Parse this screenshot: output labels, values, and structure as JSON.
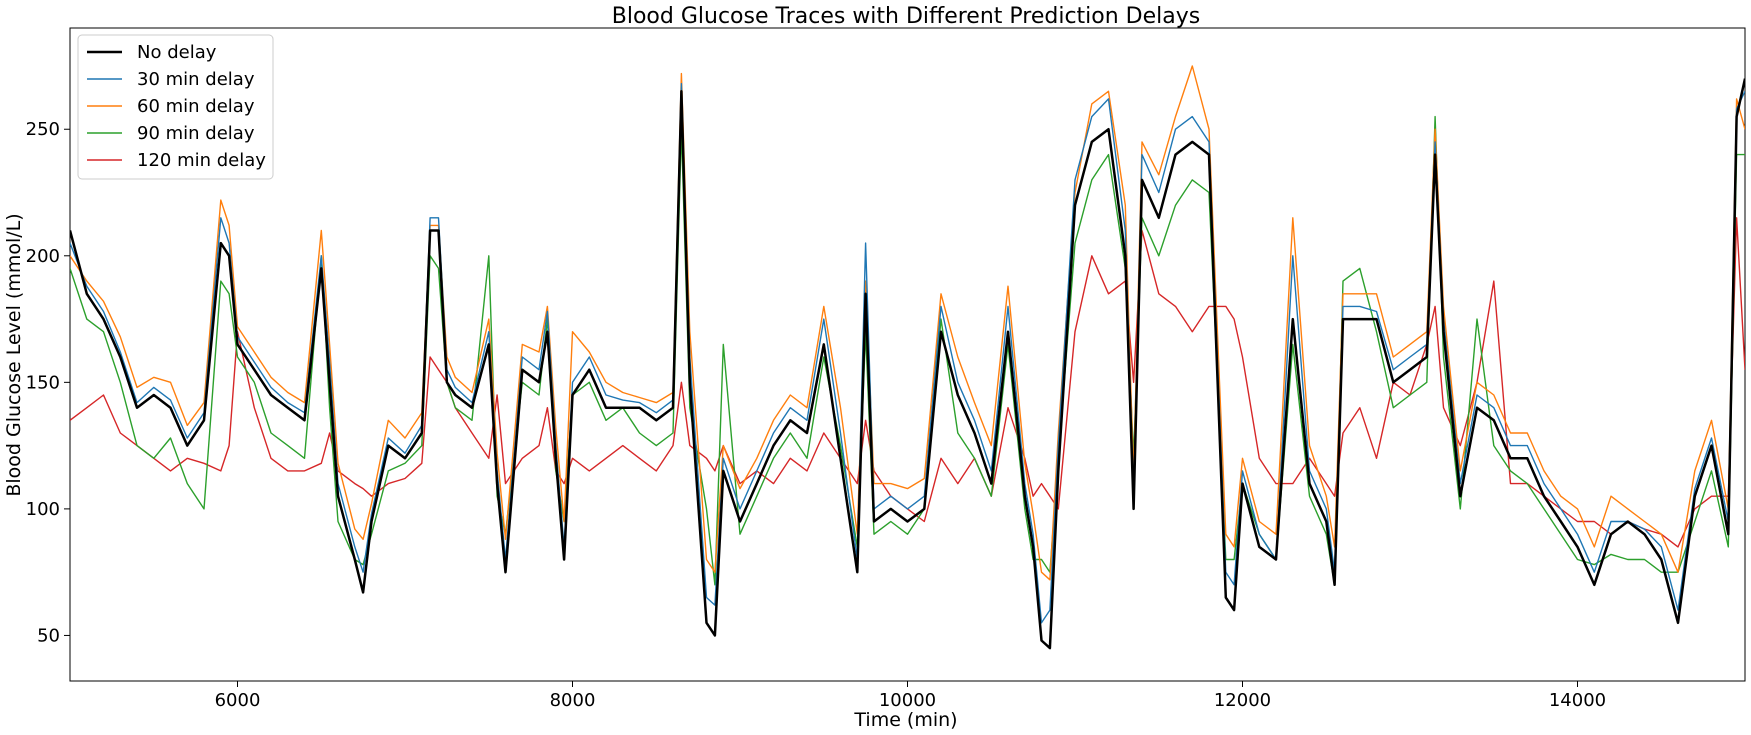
{
  "chart_data": {
    "type": "line",
    "title": "Blood Glucose Traces with Different Prediction Delays",
    "xlabel": "Time (min)",
    "ylabel": "Blood Glucose Level (mmol/L)",
    "xlim": [
      5000,
      15000
    ],
    "ylim": [
      32,
      290
    ],
    "xticks": [
      6000,
      8000,
      10000,
      12000,
      14000
    ],
    "yticks": [
      50,
      100,
      150,
      200,
      250
    ],
    "grid": false,
    "legend_position": "top-left",
    "series": [
      {
        "name": "No delay",
        "color": "#000000",
        "width": 2.5,
        "x": [
          5000,
          5100,
          5200,
          5300,
          5400,
          5500,
          5600,
          5700,
          5800,
          5900,
          5950,
          6000,
          6100,
          6200,
          6300,
          6400,
          6500,
          6550,
          6600,
          6700,
          6750,
          6800,
          6900,
          7000,
          7100,
          7150,
          7200,
          7250,
          7300,
          7400,
          7500,
          7550,
          7600,
          7700,
          7800,
          7850,
          7900,
          7950,
          8000,
          8100,
          8200,
          8300,
          8400,
          8500,
          8600,
          8650,
          8700,
          8800,
          8850,
          8900,
          9000,
          9100,
          9200,
          9300,
          9400,
          9500,
          9600,
          9700,
          9750,
          9800,
          9900,
          10000,
          10100,
          10200,
          10300,
          10400,
          10500,
          10600,
          10700,
          10750,
          10800,
          10850,
          10900,
          11000,
          11100,
          11200,
          11300,
          11350,
          11400,
          11500,
          11600,
          11700,
          11800,
          11900,
          11950,
          12000,
          12100,
          12200,
          12300,
          12400,
          12500,
          12550,
          12600,
          12700,
          12800,
          12900,
          13000,
          13100,
          13150,
          13200,
          13300,
          13400,
          13500,
          13600,
          13700,
          13800,
          13900,
          14000,
          14100,
          14200,
          14300,
          14400,
          14500,
          14600,
          14700,
          14800,
          14900,
          14950,
          15000
        ],
        "y": [
          210,
          185,
          175,
          160,
          140,
          145,
          140,
          125,
          135,
          205,
          200,
          165,
          155,
          145,
          140,
          135,
          195,
          150,
          105,
          80,
          67,
          95,
          125,
          120,
          130,
          210,
          210,
          150,
          145,
          140,
          165,
          110,
          75,
          155,
          150,
          170,
          120,
          80,
          145,
          155,
          140,
          140,
          140,
          135,
          140,
          265,
          150,
          55,
          50,
          115,
          95,
          110,
          125,
          135,
          130,
          165,
          120,
          75,
          185,
          95,
          100,
          95,
          100,
          170,
          145,
          130,
          110,
          170,
          105,
          85,
          48,
          45,
          115,
          220,
          245,
          250,
          200,
          100,
          230,
          215,
          240,
          245,
          240,
          65,
          60,
          110,
          85,
          80,
          175,
          110,
          95,
          70,
          175,
          175,
          175,
          150,
          155,
          160,
          240,
          170,
          105,
          140,
          135,
          120,
          120,
          105,
          95,
          85,
          70,
          90,
          95,
          90,
          80,
          55,
          105,
          125,
          90,
          255,
          270
        ]
      },
      {
        "name": "30 min delay",
        "color": "#1f77b4",
        "width": 1.4,
        "x": [
          5000,
          5100,
          5200,
          5300,
          5400,
          5500,
          5600,
          5700,
          5800,
          5900,
          5950,
          6000,
          6100,
          6200,
          6300,
          6400,
          6500,
          6550,
          6600,
          6700,
          6750,
          6800,
          6900,
          7000,
          7100,
          7150,
          7200,
          7250,
          7300,
          7400,
          7500,
          7550,
          7600,
          7700,
          7800,
          7850,
          7900,
          7950,
          8000,
          8100,
          8200,
          8300,
          8400,
          8500,
          8600,
          8650,
          8700,
          8800,
          8850,
          8900,
          9000,
          9100,
          9200,
          9300,
          9400,
          9500,
          9600,
          9700,
          9750,
          9800,
          9900,
          10000,
          10100,
          10200,
          10300,
          10400,
          10500,
          10600,
          10700,
          10750,
          10800,
          10850,
          10900,
          11000,
          11100,
          11200,
          11300,
          11350,
          11400,
          11500,
          11600,
          11700,
          11800,
          11900,
          11950,
          12000,
          12100,
          12200,
          12300,
          12400,
          12500,
          12550,
          12600,
          12700,
          12800,
          12900,
          13000,
          13100,
          13150,
          13200,
          13300,
          13400,
          13500,
          13600,
          13700,
          13800,
          13900,
          14000,
          14100,
          14200,
          14300,
          14400,
          14500,
          14600,
          14700,
          14800,
          14900,
          14950,
          15000
        ],
        "y": [
          205,
          188,
          178,
          162,
          142,
          148,
          143,
          128,
          138,
          215,
          205,
          168,
          158,
          148,
          142,
          138,
          200,
          158,
          110,
          85,
          75,
          98,
          128,
          122,
          133,
          215,
          215,
          155,
          148,
          142,
          170,
          115,
          80,
          160,
          155,
          178,
          125,
          85,
          150,
          160,
          145,
          143,
          142,
          138,
          143,
          268,
          160,
          65,
          62,
          120,
          100,
          115,
          130,
          140,
          135,
          175,
          130,
          80,
          205,
          100,
          105,
          100,
          105,
          180,
          150,
          135,
          115,
          180,
          110,
          90,
          55,
          60,
          125,
          230,
          255,
          262,
          210,
          105,
          240,
          225,
          250,
          255,
          245,
          75,
          70,
          115,
          90,
          80,
          200,
          115,
          100,
          75,
          180,
          180,
          178,
          155,
          160,
          165,
          245,
          175,
          110,
          145,
          140,
          125,
          125,
          110,
          100,
          90,
          75,
          95,
          95,
          92,
          85,
          60,
          108,
          128,
          95,
          258,
          265
        ]
      },
      {
        "name": "60 min delay",
        "color": "#ff7f0e",
        "width": 1.4,
        "x": [
          5000,
          5100,
          5200,
          5300,
          5400,
          5500,
          5600,
          5700,
          5800,
          5900,
          5950,
          6000,
          6100,
          6200,
          6300,
          6400,
          6500,
          6550,
          6600,
          6700,
          6750,
          6800,
          6900,
          7000,
          7100,
          7150,
          7200,
          7250,
          7300,
          7400,
          7500,
          7550,
          7600,
          7700,
          7800,
          7850,
          7900,
          7950,
          8000,
          8100,
          8200,
          8300,
          8400,
          8500,
          8600,
          8650,
          8700,
          8800,
          8850,
          8900,
          9000,
          9100,
          9200,
          9300,
          9400,
          9500,
          9600,
          9700,
          9750,
          9800,
          9900,
          10000,
          10100,
          10200,
          10300,
          10400,
          10500,
          10600,
          10700,
          10750,
          10800,
          10850,
          10900,
          11000,
          11100,
          11200,
          11300,
          11350,
          11400,
          11500,
          11600,
          11700,
          11800,
          11900,
          11950,
          12000,
          12100,
          12200,
          12300,
          12400,
          12500,
          12550,
          12600,
          12700,
          12800,
          12900,
          13000,
          13100,
          13150,
          13200,
          13300,
          13400,
          13500,
          13600,
          13700,
          13800,
          13900,
          14000,
          14100,
          14200,
          14300,
          14400,
          14500,
          14600,
          14700,
          14800,
          14900,
          14950,
          15000
        ],
        "y": [
          200,
          190,
          182,
          168,
          148,
          152,
          150,
          133,
          142,
          222,
          212,
          172,
          162,
          152,
          146,
          142,
          210,
          165,
          118,
          92,
          88,
          102,
          135,
          128,
          138,
          212,
          212,
          160,
          152,
          146,
          175,
          122,
          88,
          165,
          162,
          180,
          132,
          95,
          170,
          162,
          150,
          146,
          144,
          142,
          146,
          272,
          170,
          80,
          75,
          125,
          108,
          120,
          135,
          145,
          140,
          180,
          140,
          90,
          190,
          110,
          110,
          108,
          112,
          185,
          160,
          142,
          125,
          188,
          118,
          98,
          75,
          72,
          130,
          225,
          260,
          265,
          220,
          112,
          245,
          232,
          255,
          275,
          250,
          90,
          85,
          120,
          95,
          90,
          215,
          125,
          105,
          85,
          185,
          185,
          185,
          160,
          165,
          170,
          250,
          180,
          115,
          150,
          145,
          130,
          130,
          115,
          105,
          100,
          85,
          105,
          100,
          95,
          90,
          75,
          115,
          135,
          100,
          262,
          250
        ]
      },
      {
        "name": "90 min delay",
        "color": "#2ca02c",
        "width": 1.4,
        "x": [
          5000,
          5100,
          5200,
          5300,
          5400,
          5500,
          5600,
          5700,
          5800,
          5900,
          5950,
          6000,
          6100,
          6200,
          6300,
          6400,
          6500,
          6550,
          6600,
          6700,
          6750,
          6800,
          6900,
          7000,
          7100,
          7150,
          7200,
          7250,
          7300,
          7400,
          7500,
          7550,
          7600,
          7700,
          7800,
          7850,
          7900,
          7950,
          8000,
          8100,
          8200,
          8300,
          8400,
          8500,
          8600,
          8650,
          8700,
          8800,
          8850,
          8900,
          9000,
          9100,
          9200,
          9300,
          9400,
          9500,
          9600,
          9700,
          9750,
          9800,
          9900,
          10000,
          10100,
          10200,
          10300,
          10400,
          10500,
          10600,
          10700,
          10750,
          10800,
          10850,
          10900,
          11000,
          11100,
          11200,
          11300,
          11350,
          11400,
          11500,
          11600,
          11700,
          11800,
          11900,
          11950,
          12000,
          12100,
          12200,
          12300,
          12400,
          12500,
          12550,
          12600,
          12700,
          12800,
          12900,
          13000,
          13100,
          13150,
          13200,
          13300,
          13400,
          13500,
          13600,
          13700,
          13800,
          13900,
          14000,
          14100,
          14200,
          14300,
          14400,
          14500,
          14600,
          14700,
          14800,
          14900,
          14950,
          15000
        ],
        "y": [
          195,
          175,
          170,
          150,
          125,
          120,
          128,
          110,
          100,
          190,
          185,
          160,
          150,
          130,
          125,
          120,
          200,
          140,
          95,
          80,
          78,
          90,
          115,
          118,
          125,
          200,
          195,
          150,
          140,
          135,
          200,
          105,
          90,
          150,
          145,
          175,
          115,
          95,
          145,
          150,
          135,
          140,
          130,
          125,
          130,
          250,
          140,
          100,
          70,
          165,
          90,
          105,
          120,
          130,
          120,
          160,
          125,
          85,
          170,
          90,
          95,
          90,
          100,
          175,
          130,
          120,
          105,
          165,
          100,
          80,
          80,
          75,
          120,
          205,
          230,
          240,
          195,
          120,
          215,
          200,
          220,
          230,
          225,
          80,
          80,
          110,
          90,
          80,
          165,
          105,
          90,
          70,
          190,
          195,
          170,
          140,
          145,
          150,
          255,
          160,
          100,
          175,
          125,
          115,
          110,
          100,
          90,
          80,
          78,
          82,
          80,
          80,
          75,
          75,
          95,
          115,
          85,
          240,
          240
        ]
      },
      {
        "name": "120 min delay",
        "color": "#d62728",
        "width": 1.4,
        "x": [
          5000,
          5100,
          5200,
          5300,
          5400,
          5500,
          5600,
          5700,
          5800,
          5900,
          5950,
          6000,
          6100,
          6200,
          6300,
          6400,
          6500,
          6550,
          6600,
          6700,
          6750,
          6800,
          6900,
          7000,
          7100,
          7150,
          7200,
          7250,
          7300,
          7400,
          7500,
          7550,
          7600,
          7700,
          7800,
          7850,
          7900,
          7950,
          8000,
          8100,
          8200,
          8300,
          8400,
          8500,
          8600,
          8650,
          8700,
          8800,
          8850,
          8900,
          9000,
          9100,
          9200,
          9300,
          9400,
          9500,
          9600,
          9700,
          9750,
          9800,
          9900,
          10000,
          10100,
          10200,
          10300,
          10400,
          10500,
          10600,
          10700,
          10750,
          10800,
          10850,
          10900,
          11000,
          11100,
          11200,
          11300,
          11350,
          11400,
          11500,
          11600,
          11700,
          11800,
          11900,
          11950,
          12000,
          12100,
          12200,
          12300,
          12400,
          12500,
          12550,
          12600,
          12700,
          12800,
          12900,
          13000,
          13100,
          13150,
          13200,
          13300,
          13400,
          13500,
          13600,
          13700,
          13800,
          13900,
          14000,
          14100,
          14200,
          14300,
          14400,
          14500,
          14600,
          14700,
          14800,
          14900,
          14950,
          15000
        ],
        "y": [
          135,
          140,
          145,
          130,
          125,
          120,
          115,
          120,
          118,
          115,
          125,
          170,
          140,
          120,
          115,
          115,
          118,
          130,
          115,
          110,
          108,
          105,
          110,
          112,
          118,
          160,
          155,
          150,
          140,
          130,
          120,
          145,
          110,
          120,
          125,
          140,
          115,
          110,
          120,
          115,
          120,
          125,
          120,
          115,
          125,
          150,
          125,
          120,
          115,
          125,
          110,
          115,
          110,
          120,
          115,
          130,
          120,
          110,
          135,
          115,
          105,
          100,
          95,
          120,
          110,
          120,
          105,
          140,
          120,
          105,
          110,
          105,
          100,
          170,
          200,
          185,
          190,
          150,
          210,
          185,
          180,
          170,
          180,
          180,
          175,
          160,
          120,
          110,
          110,
          120,
          110,
          105,
          130,
          140,
          120,
          150,
          145,
          165,
          180,
          140,
          125,
          150,
          190,
          110,
          110,
          105,
          100,
          95,
          95,
          90,
          95,
          92,
          90,
          85,
          100,
          105,
          105,
          215,
          155
        ]
      }
    ]
  }
}
